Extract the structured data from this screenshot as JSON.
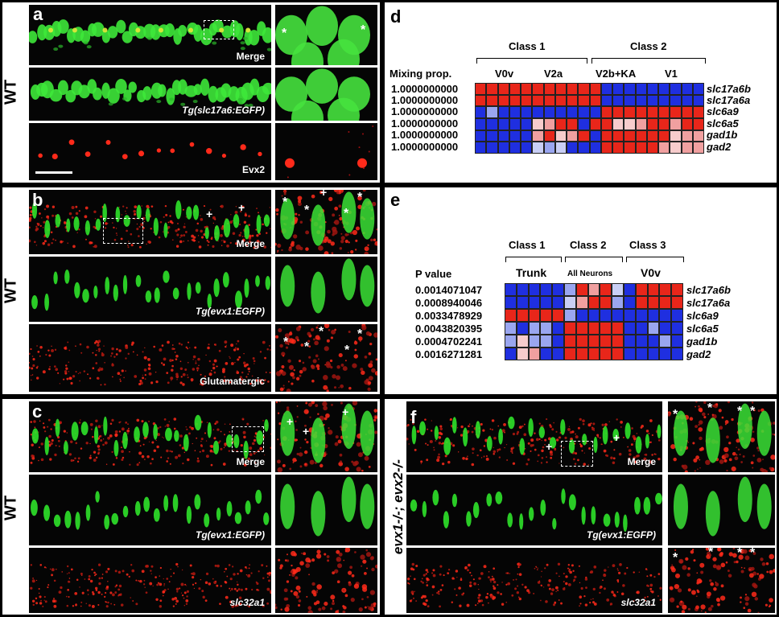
{
  "panels": {
    "a": {
      "letter": "a",
      "side_label": "WT",
      "labels": [
        "Merge",
        "Tg(slc17a6:EGFP)",
        "Evx2"
      ]
    },
    "b": {
      "letter": "b",
      "side_label": "WT",
      "labels": [
        "Merge",
        "Tg(evx1:EGFP)",
        "Glutamatergic"
      ]
    },
    "c": {
      "letter": "c",
      "side_label": "WT",
      "labels": [
        "Merge",
        "Tg(evx1:EGFP)",
        "slc32a1"
      ]
    },
    "d": {
      "letter": "d"
    },
    "e": {
      "letter": "e"
    },
    "f": {
      "letter": "f",
      "side_label": "evx1-/-; evx2-/-",
      "labels": [
        "Merge",
        "Tg(evx1:EGFP)",
        "slc32a1"
      ]
    }
  },
  "heatmap_d": {
    "class_labels": [
      "Class 1",
      "Class 2"
    ],
    "group_labels": [
      "V0v",
      "V2a",
      "V2b+KA",
      "V1"
    ],
    "row_header": "Mixing prop.",
    "row_values": [
      "1.0000000000",
      "1.0000000000",
      "1.0000000000",
      "1.0000000000",
      "1.0000000000",
      "1.0000000000"
    ],
    "genes": [
      "slc17a6b",
      "slc17a6a",
      "slc6a9",
      "slc6a5",
      "gad1b",
      "gad2"
    ],
    "colors": {
      "red": "#e8261a",
      "blue": "#1f2fe0"
    }
  },
  "heatmap_e": {
    "class_labels": [
      "Class 1",
      "Class 2",
      "Class 3"
    ],
    "group_labels": [
      "Trunk",
      "All Neurons",
      "V0v"
    ],
    "row_header": "P value",
    "row_values": [
      "0.0014071047",
      "0.0008940046",
      "0.0033478929",
      "0.0043820395",
      "0.0004702241",
      "0.0016271281"
    ],
    "genes": [
      "slc17a6b",
      "slc17a6a",
      "slc6a9",
      "slc6a5",
      "gad1b",
      "gad2"
    ]
  },
  "markers": {
    "star": "*",
    "cross": "+"
  }
}
